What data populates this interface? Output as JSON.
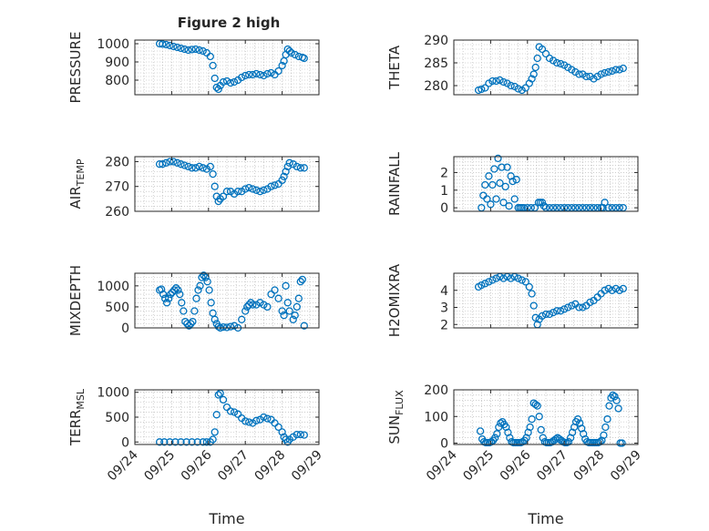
{
  "title": "Figure 2 high",
  "colors": {
    "marker": "#0072BD",
    "axis": "#262626",
    "grid": "#b0b0b0",
    "background": "#ffffff"
  },
  "chart_data": [
    {
      "type": "scatter",
      "ylabel": "PRESSURE",
      "ylim": [
        720,
        1020
      ],
      "yticks": [
        800,
        900,
        1000
      ],
      "xlim": [
        0,
        5
      ],
      "xticklabels": [],
      "grid": true,
      "marker": "open-circle",
      "x": [
        0.67,
        0.75,
        0.85,
        0.95,
        1.05,
        1.15,
        1.25,
        1.35,
        1.45,
        1.55,
        1.65,
        1.75,
        1.85,
        1.95,
        2.05,
        2.12,
        2.17,
        2.22,
        2.27,
        2.32,
        2.4,
        2.5,
        2.6,
        2.7,
        2.8,
        2.9,
        3.0,
        3.1,
        3.2,
        3.3,
        3.4,
        3.5,
        3.6,
        3.7,
        3.8,
        3.9,
        4.0,
        4.05,
        4.1,
        4.15,
        4.2,
        4.25,
        4.35,
        4.45,
        4.55,
        4.6
      ],
      "y": [
        1000,
        998,
        995,
        990,
        985,
        980,
        975,
        970,
        965,
        968,
        970,
        965,
        960,
        950,
        930,
        880,
        810,
        760,
        750,
        770,
        790,
        795,
        785,
        790,
        800,
        815,
        825,
        830,
        830,
        835,
        830,
        825,
        835,
        840,
        830,
        850,
        880,
        905,
        940,
        970,
        960,
        950,
        940,
        930,
        925,
        920
      ]
    },
    {
      "type": "scatter",
      "ylabel": "THETA",
      "ylim": [
        278,
        290
      ],
      "yticks": [
        280,
        285,
        290
      ],
      "xlim": [
        0,
        5
      ],
      "xticklabels": [],
      "grid": true,
      "marker": "open-circle",
      "x": [
        0.67,
        0.75,
        0.85,
        0.95,
        1.05,
        1.15,
        1.25,
        1.35,
        1.45,
        1.55,
        1.65,
        1.75,
        1.85,
        1.95,
        2.05,
        2.12,
        2.17,
        2.22,
        2.27,
        2.32,
        2.4,
        2.5,
        2.6,
        2.7,
        2.8,
        2.9,
        3.0,
        3.1,
        3.2,
        3.3,
        3.4,
        3.5,
        3.6,
        3.7,
        3.8,
        3.9,
        4.0,
        4.1,
        4.2,
        4.3,
        4.4,
        4.5,
        4.6
      ],
      "y": [
        279,
        279.2,
        279.5,
        280.5,
        281,
        281,
        281.2,
        280.8,
        280.5,
        280,
        279.8,
        279.3,
        279,
        279.5,
        280.5,
        281.5,
        282.5,
        284,
        286,
        288.5,
        288,
        287,
        286,
        285.5,
        285,
        284.8,
        284.5,
        284,
        283.5,
        283,
        282.5,
        282.5,
        282,
        282,
        281.5,
        282,
        282.5,
        282.8,
        283,
        283.2,
        283.5,
        283.5,
        283.8
      ]
    },
    {
      "type": "scatter",
      "ylabel": "AIR_TEMP",
      "ylim": [
        260,
        282
      ],
      "yticks": [
        260,
        270,
        280
      ],
      "xlim": [
        0,
        5
      ],
      "xticklabels": [],
      "grid": true,
      "marker": "open-circle",
      "x": [
        0.67,
        0.75,
        0.85,
        0.95,
        1.05,
        1.15,
        1.25,
        1.35,
        1.45,
        1.55,
        1.65,
        1.75,
        1.85,
        1.95,
        2.05,
        2.12,
        2.17,
        2.22,
        2.27,
        2.32,
        2.4,
        2.5,
        2.6,
        2.7,
        2.8,
        2.9,
        3.0,
        3.1,
        3.2,
        3.3,
        3.4,
        3.5,
        3.6,
        3.7,
        3.8,
        3.9,
        4.0,
        4.05,
        4.1,
        4.15,
        4.2,
        4.3,
        4.4,
        4.5,
        4.6
      ],
      "y": [
        279,
        279,
        279.5,
        280,
        280,
        279.5,
        279,
        278.5,
        278,
        277.5,
        277.5,
        278,
        277.5,
        277,
        278,
        275,
        270,
        266,
        264,
        265,
        266,
        268,
        268,
        267,
        268,
        268,
        269,
        269.5,
        269,
        268.5,
        268,
        268.5,
        269,
        270,
        270.5,
        271,
        272.5,
        274,
        276,
        278,
        279.5,
        279,
        278,
        277.5,
        277.5
      ]
    },
    {
      "type": "scatter",
      "ylabel": "RAINFALL",
      "ylim": [
        -0.2,
        2.9
      ],
      "yticks": [
        0,
        1,
        2
      ],
      "xlim": [
        0,
        5
      ],
      "xticklabels": [],
      "grid": true,
      "marker": "open-circle",
      "x": [
        0.75,
        0.8,
        0.85,
        0.9,
        0.95,
        1.0,
        1.05,
        1.1,
        1.15,
        1.2,
        1.25,
        1.3,
        1.35,
        1.4,
        1.45,
        1.5,
        1.55,
        1.6,
        1.65,
        1.7,
        1.75,
        1.8,
        1.85,
        1.9,
        2.0,
        2.1,
        2.2,
        2.3,
        2.35,
        2.4,
        2.45,
        2.5,
        2.6,
        2.7,
        2.8,
        2.9,
        3.0,
        3.1,
        3.2,
        3.3,
        3.4,
        3.5,
        3.6,
        3.7,
        3.8,
        3.9,
        4.0,
        4.05,
        4.1,
        4.2,
        4.3,
        4.4,
        4.5,
        4.6
      ],
      "y": [
        0,
        0.7,
        1.3,
        0.5,
        1.8,
        0.2,
        1.3,
        2.2,
        0.5,
        2.8,
        1.4,
        2.3,
        0.3,
        1.2,
        2.3,
        0.1,
        1.8,
        1.5,
        0.5,
        1.6,
        0,
        0,
        0,
        0,
        0,
        0,
        0,
        0.3,
        0.3,
        0.3,
        0.1,
        0,
        0,
        0,
        0,
        0,
        0,
        0,
        0,
        0,
        0,
        0,
        0,
        0,
        0,
        0,
        0,
        0,
        0.3,
        0,
        0,
        0,
        0,
        0
      ]
    },
    {
      "type": "scatter",
      "ylabel": "MIXDEPTH",
      "ylim": [
        0,
        1300
      ],
      "yticks": [
        0,
        500,
        1000
      ],
      "xlim": [
        0,
        5
      ],
      "xticklabels": [],
      "grid": true,
      "marker": "open-circle",
      "x": [
        0.67,
        0.72,
        0.77,
        0.82,
        0.87,
        0.92,
        0.97,
        1.02,
        1.07,
        1.12,
        1.17,
        1.22,
        1.27,
        1.32,
        1.37,
        1.42,
        1.47,
        1.52,
        1.57,
        1.62,
        1.67,
        1.72,
        1.77,
        1.82,
        1.87,
        1.92,
        1.97,
        2.02,
        2.07,
        2.12,
        2.17,
        2.22,
        2.27,
        2.32,
        2.4,
        2.5,
        2.6,
        2.7,
        2.8,
        2.9,
        3.0,
        3.05,
        3.1,
        3.15,
        3.2,
        3.3,
        3.4,
        3.5,
        3.6,
        3.7,
        3.8,
        3.9,
        4.0,
        4.05,
        4.1,
        4.15,
        4.2,
        4.3,
        4.35,
        4.4,
        4.45,
        4.5,
        4.55,
        4.6
      ],
      "y": [
        900,
        920,
        800,
        700,
        600,
        700,
        800,
        850,
        900,
        950,
        900,
        800,
        600,
        400,
        150,
        100,
        50,
        100,
        150,
        400,
        700,
        900,
        1000,
        1200,
        1250,
        1200,
        1100,
        900,
        600,
        350,
        200,
        100,
        30,
        0,
        20,
        10,
        30,
        50,
        0,
        200,
        400,
        500,
        550,
        600,
        550,
        550,
        600,
        550,
        500,
        800,
        900,
        700,
        400,
        300,
        1000,
        600,
        400,
        200,
        300,
        500,
        700,
        1100,
        1150,
        50
      ]
    },
    {
      "type": "scatter",
      "ylabel": "H2OMIXRA",
      "ylim": [
        1.8,
        5
      ],
      "yticks": [
        2,
        3,
        4
      ],
      "xlim": [
        0,
        5
      ],
      "xticklabels": [],
      "grid": true,
      "marker": "open-circle",
      "x": [
        0.67,
        0.75,
        0.85,
        0.95,
        1.05,
        1.15,
        1.25,
        1.35,
        1.45,
        1.55,
        1.65,
        1.75,
        1.85,
        1.95,
        2.05,
        2.12,
        2.17,
        2.22,
        2.27,
        2.32,
        2.4,
        2.5,
        2.6,
        2.7,
        2.8,
        2.9,
        3.0,
        3.1,
        3.2,
        3.3,
        3.4,
        3.5,
        3.6,
        3.7,
        3.8,
        3.9,
        4.0,
        4.1,
        4.2,
        4.3,
        4.4,
        4.5,
        4.6
      ],
      "y": [
        4.2,
        4.3,
        4.4,
        4.5,
        4.6,
        4.7,
        4.8,
        4.7,
        4.8,
        4.7,
        4.8,
        4.7,
        4.6,
        4.5,
        4.2,
        3.8,
        3.1,
        2.4,
        2.0,
        2.3,
        2.5,
        2.6,
        2.6,
        2.7,
        2.8,
        2.8,
        2.9,
        3.0,
        3.1,
        3.2,
        3.0,
        3.0,
        3.1,
        3.3,
        3.4,
        3.6,
        3.8,
        4.0,
        4.1,
        4.0,
        4.1,
        4.0,
        4.1
      ]
    },
    {
      "type": "scatter",
      "ylabel": "TERR_MSL",
      "ylim": [
        -50,
        1050
      ],
      "yticks": [
        0,
        500,
        1000
      ],
      "xlim": [
        0,
        5
      ],
      "xticklabels": [
        "09/24",
        "09/25",
        "09/26",
        "09/27",
        "09/28",
        "09/29"
      ],
      "xlabel": "Time",
      "grid": true,
      "marker": "open-circle",
      "x": [
        0.67,
        0.8,
        0.95,
        1.1,
        1.25,
        1.4,
        1.55,
        1.7,
        1.85,
        1.95,
        2.05,
        2.12,
        2.17,
        2.22,
        2.27,
        2.32,
        2.4,
        2.5,
        2.6,
        2.7,
        2.8,
        2.9,
        3.0,
        3.1,
        3.2,
        3.3,
        3.4,
        3.5,
        3.6,
        3.7,
        3.8,
        3.9,
        4.0,
        4.05,
        4.1,
        4.15,
        4.2,
        4.3,
        4.4,
        4.5,
        4.6
      ],
      "y": [
        0,
        0,
        0,
        0,
        0,
        0,
        0,
        0,
        0,
        0,
        0,
        50,
        200,
        550,
        950,
        980,
        850,
        700,
        620,
        600,
        560,
        480,
        420,
        400,
        380,
        430,
        450,
        500,
        470,
        450,
        380,
        300,
        200,
        100,
        50,
        0,
        50,
        100,
        150,
        150,
        140
      ]
    },
    {
      "type": "scatter",
      "ylabel": "SUN_FLUX",
      "ylim": [
        -5,
        200
      ],
      "yticks": [
        0,
        100,
        200
      ],
      "xlim": [
        0,
        5
      ],
      "xticklabels": [
        "09/24",
        "09/25",
        "09/26",
        "09/27",
        "09/28",
        "09/29"
      ],
      "xlabel": "Time",
      "grid": true,
      "marker": "open-circle",
      "x": [
        0.72,
        0.77,
        0.82,
        0.87,
        0.92,
        0.97,
        1.02,
        1.07,
        1.12,
        1.17,
        1.22,
        1.27,
        1.32,
        1.37,
        1.42,
        1.47,
        1.52,
        1.57,
        1.62,
        1.67,
        1.72,
        1.77,
        1.82,
        1.87,
        1.92,
        1.97,
        2.02,
        2.07,
        2.12,
        2.17,
        2.22,
        2.27,
        2.32,
        2.37,
        2.42,
        2.47,
        2.52,
        2.57,
        2.62,
        2.67,
        2.72,
        2.77,
        2.82,
        2.87,
        2.92,
        2.97,
        3.02,
        3.07,
        3.12,
        3.17,
        3.22,
        3.27,
        3.32,
        3.37,
        3.42,
        3.47,
        3.52,
        3.57,
        3.62,
        3.67,
        3.72,
        3.77,
        3.82,
        3.87,
        3.92,
        3.97,
        4.02,
        4.07,
        4.12,
        4.17,
        4.22,
        4.27,
        4.32,
        4.37,
        4.42,
        4.47,
        4.52,
        4.57
      ],
      "y": [
        45,
        15,
        5,
        2,
        2,
        2,
        5,
        10,
        20,
        35,
        60,
        75,
        80,
        70,
        60,
        40,
        20,
        5,
        2,
        2,
        2,
        2,
        2,
        5,
        10,
        20,
        40,
        60,
        90,
        150,
        145,
        140,
        100,
        50,
        20,
        5,
        2,
        2,
        2,
        5,
        10,
        15,
        20,
        15,
        10,
        5,
        2,
        2,
        5,
        20,
        40,
        60,
        80,
        90,
        75,
        55,
        35,
        15,
        5,
        2,
        2,
        2,
        2,
        2,
        2,
        5,
        10,
        30,
        60,
        90,
        140,
        170,
        180,
        175,
        160,
        130,
        0,
        0
      ]
    }
  ]
}
